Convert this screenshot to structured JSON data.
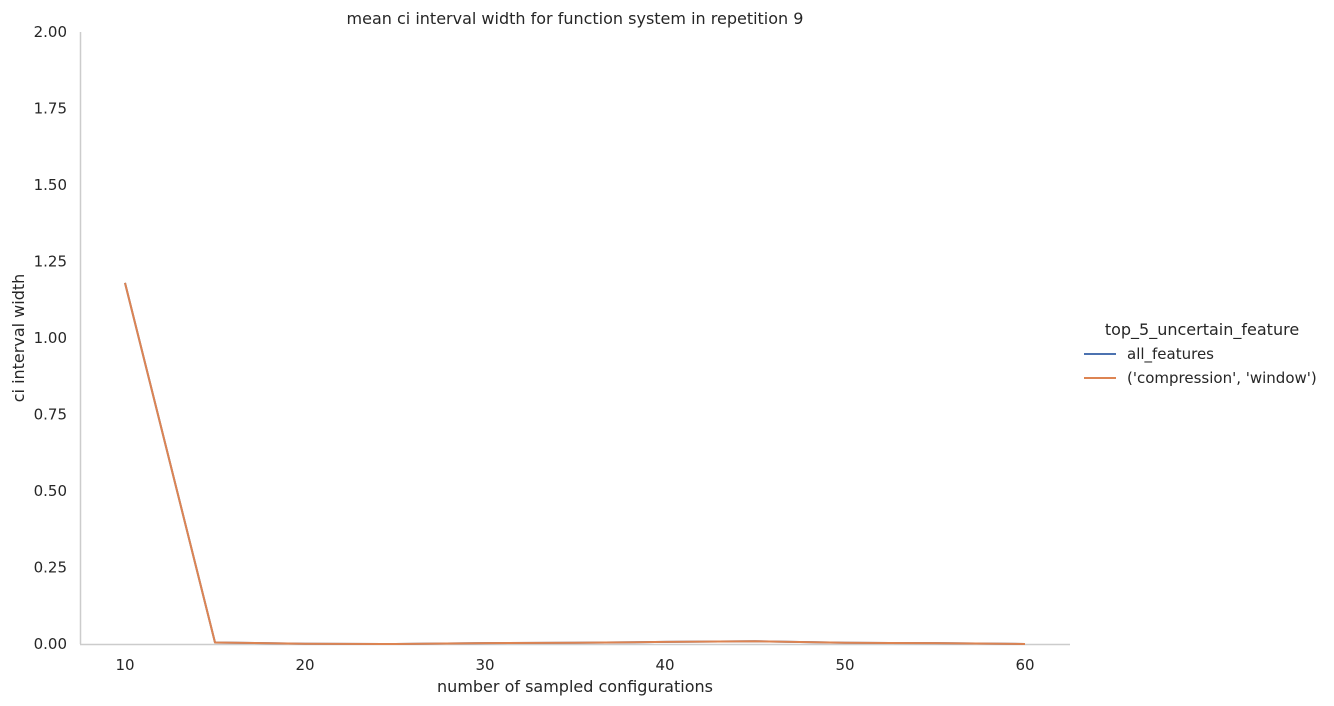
{
  "chart_data": {
    "type": "line",
    "title": "mean ci interval width for function system in repetition 9",
    "xlabel": "number of sampled configurations",
    "ylabel": "ci interval width",
    "xlim": [
      7.5,
      62.5
    ],
    "ylim": [
      0,
      2.0
    ],
    "xticks": [
      10,
      20,
      30,
      40,
      50,
      60
    ],
    "yticks": [
      0.0,
      0.25,
      0.5,
      0.75,
      1.0,
      1.25,
      1.5,
      1.75,
      2.0
    ],
    "ytick_labels": [
      "0.00",
      "0.25",
      "0.50",
      "0.75",
      "1.00",
      "1.25",
      "1.50",
      "1.75",
      "2.00"
    ],
    "grid": false,
    "legend_title": "top_5_uncertain_feature",
    "legend_placement": "right",
    "series": [
      {
        "name": "all_features",
        "color": "#4c72b0",
        "x": [
          10,
          15,
          20,
          25,
          30,
          35,
          40,
          45,
          50,
          55,
          60
        ],
        "y": [
          1.18,
          0.005,
          0.001,
          0.0,
          0.003,
          0.004,
          0.007,
          0.009,
          0.004,
          0.003,
          0.0
        ]
      },
      {
        "name": "('compression', 'window')",
        "color": "#dd8452",
        "x": [
          10,
          15,
          20,
          25,
          30,
          35,
          40,
          45,
          50,
          55,
          60
        ],
        "y": [
          1.18,
          0.005,
          0.001,
          0.0,
          0.003,
          0.004,
          0.007,
          0.009,
          0.004,
          0.003,
          0.0
        ]
      }
    ]
  }
}
